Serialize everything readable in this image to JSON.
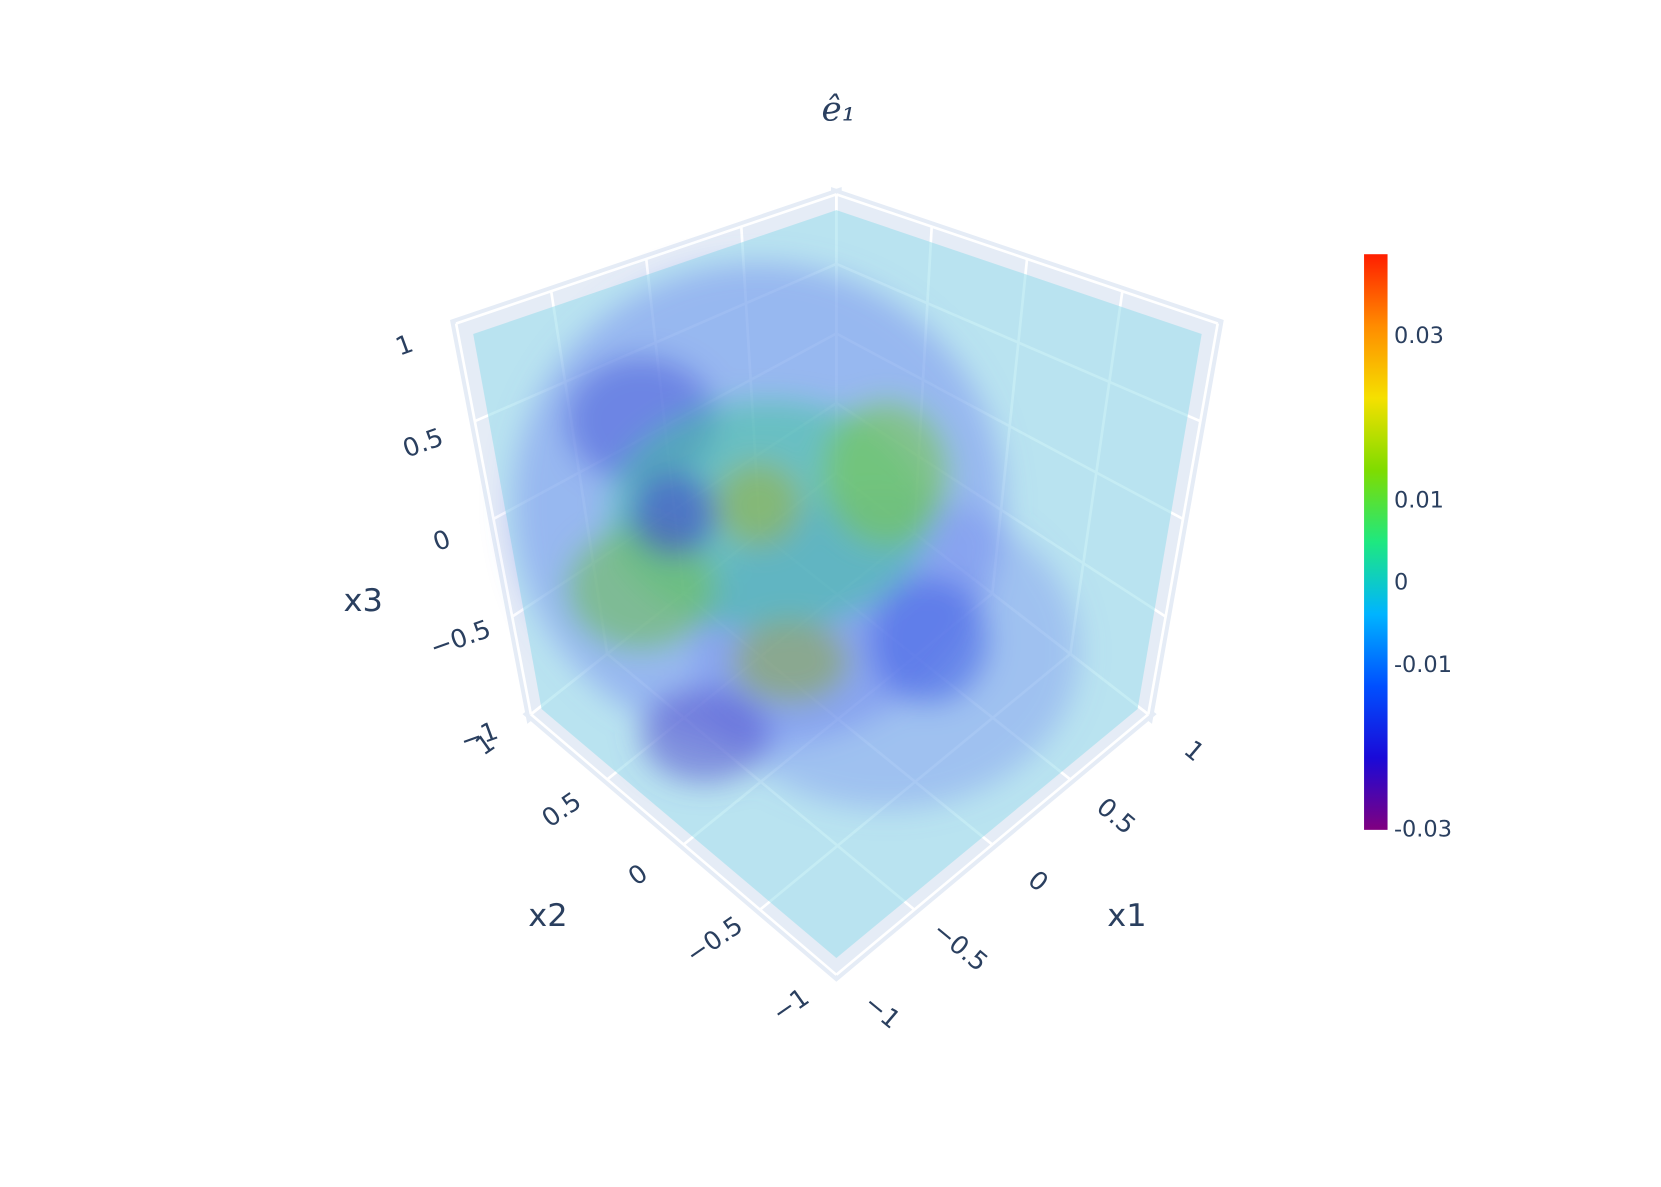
{
  "chart_data": {
    "type": "volume",
    "title": "ê₁",
    "xlabel": "x1",
    "ylabel": "x2",
    "zlabel": "x3",
    "xlim": [
      -1,
      1
    ],
    "ylim": [
      -1,
      1
    ],
    "zlim": [
      -1,
      1
    ],
    "xticks": [
      {
        "value": -1,
        "label": "−1"
      },
      {
        "value": -0.5,
        "label": "−0.5"
      },
      0,
      0.5,
      1
    ],
    "yticks": [
      {
        "value": -1,
        "label": "−1"
      },
      {
        "value": -0.5,
        "label": "−0.5"
      },
      0,
      0.5,
      1
    ],
    "zticks": [
      {
        "value": -1,
        "label": "−1"
      },
      {
        "value": -0.5,
        "label": "−0.5"
      },
      0,
      0.5,
      1
    ],
    "clim": [
      -0.03,
      0.04
    ],
    "cticks": [
      -0.03,
      -0.01,
      0,
      0.01,
      0.03
    ],
    "colorscale": [
      "#800080",
      "#1a0ad8",
      "#0050ff",
      "#00b4ff",
      "#1ee880",
      "#7fdc00",
      "#f5e000",
      "#ff8c00",
      "#ff1e00"
    ],
    "grid": true
  }
}
